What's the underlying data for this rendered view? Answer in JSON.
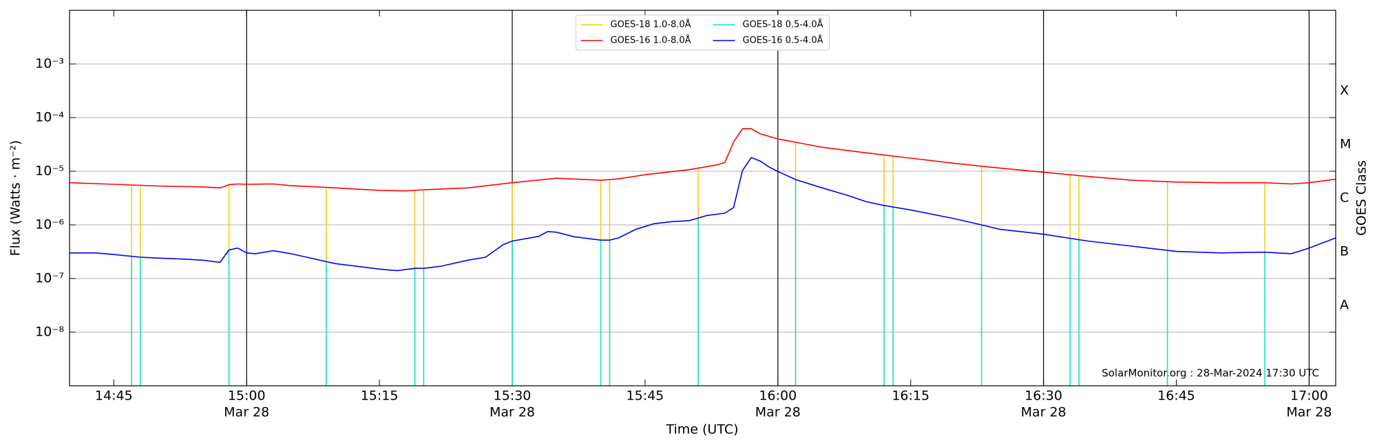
{
  "chart_data": {
    "type": "line",
    "xlabel": "Time (UTC)",
    "ylabel": "Flux (Watts · m⁻²)",
    "y2label": "GOES Class",
    "annotation": "SolarMonitor.org : 28-Mar-2024 17:30 UTC",
    "log_y": true,
    "grid": true,
    "legend": "upper center",
    "xlim": [
      "14:40",
      "17:03"
    ],
    "xticks": [
      {
        "value": "14:45",
        "label": "14:45"
      },
      {
        "value": "15:00",
        "label": [
          "15:00",
          "Mar 28"
        ]
      },
      {
        "value": "15:15",
        "label": "15:15"
      },
      {
        "value": "15:30",
        "label": [
          "15:30",
          "Mar 28"
        ]
      },
      {
        "value": "15:45",
        "label": "15:45"
      },
      {
        "value": "16:00",
        "label": [
          "16:00",
          "Mar 28"
        ]
      },
      {
        "value": "16:15",
        "label": "16:15"
      },
      {
        "value": "16:30",
        "label": [
          "16:30",
          "Mar 28"
        ]
      },
      {
        "value": "16:45",
        "label": "16:45"
      },
      {
        "value": "17:00",
        "label": [
          "17:00",
          "Mar 28"
        ]
      }
    ],
    "ylim": [
      1e-09,
      0.01
    ],
    "yticks": [
      {
        "value": 1e-08,
        "label": "10⁻⁸"
      },
      {
        "value": 1e-07,
        "label": "10⁻⁷"
      },
      {
        "value": 1e-06,
        "label": "10⁻⁶"
      },
      {
        "value": 1e-05,
        "label": "10⁻⁵"
      },
      {
        "value": 0.0001,
        "label": "10⁻⁴"
      },
      {
        "value": 0.001,
        "label": "10⁻³"
      }
    ],
    "y2lim": [
      1e-09,
      0.01
    ],
    "y2ticks": [
      {
        "value": 3.162e-08,
        "label": "A"
      },
      {
        "value": 3.162e-07,
        "label": "B"
      },
      {
        "value": 3.162e-06,
        "label": "C"
      },
      {
        "value": 3.162e-05,
        "label": "M"
      },
      {
        "value": 0.0003162,
        "label": "X"
      }
    ],
    "series": [
      {
        "name": "GOES-18 1.0-8.0Å",
        "color": "#ffc800",
        "style": "spike",
        "x": [
          "14:47",
          "14:48",
          "14:58",
          "15:09",
          "15:19",
          "15:20",
          "15:30",
          "15:40",
          "15:41",
          "15:51",
          "16:02",
          "16:12",
          "16:13",
          "16:23",
          "16:33",
          "16:34",
          "16:44",
          "16:55"
        ],
        "values": [
          5.3e-06,
          5.2e-06,
          5.6e-06,
          4.9e-06,
          4.4e-06,
          4.4e-06,
          6.1e-06,
          6.8e-06,
          6.9e-06,
          1.1e-05,
          3.4e-05,
          1.9e-05,
          1.85e-05,
          1.2e-05,
          8.6e-06,
          8.3e-06,
          6.3e-06,
          6.1e-06
        ]
      },
      {
        "name": "GOES-16 1.0-8.0Å",
        "color": "#ff0000",
        "style": "line",
        "x": [
          "14:40",
          "14:45",
          "14:50",
          "14:55",
          "14:57",
          "14:58",
          "14:59",
          "15:00",
          "15:03",
          "15:05",
          "15:10",
          "15:15",
          "15:18",
          "15:20",
          "15:25",
          "15:30",
          "15:32",
          "15:35",
          "15:40",
          "15:42",
          "15:45",
          "15:50",
          "15:53",
          "15:54",
          "15:55",
          "15:56",
          "15:57",
          "15:58",
          "16:00",
          "16:05",
          "16:10",
          "16:15",
          "16:20",
          "16:25",
          "16:30",
          "16:35",
          "16:40",
          "16:45",
          "16:50",
          "16:55",
          "16:58",
          "17:00",
          "17:03"
        ],
        "values": [
          6.1e-06,
          5.7e-06,
          5.3e-06,
          5.1e-06,
          4.9e-06,
          5.6e-06,
          5.8e-06,
          5.7e-06,
          5.8e-06,
          5.4e-06,
          4.9e-06,
          4.4e-06,
          4.3e-06,
          4.5e-06,
          4.9e-06,
          6.1e-06,
          6.6e-06,
          7.4e-06,
          6.8e-06,
          7.2e-06,
          8.6e-06,
          1.07e-05,
          1.3e-05,
          1.45e-05,
          3.5e-05,
          6.2e-05,
          6.2e-05,
          5e-05,
          4e-05,
          2.8e-05,
          2.2e-05,
          1.75e-05,
          1.4e-05,
          1.15e-05,
          9.6e-06,
          8e-06,
          6.8e-06,
          6.3e-06,
          6.1e-06,
          6.1e-06,
          5.8e-06,
          6.1e-06,
          7.1e-06
        ]
      },
      {
        "name": "GOES-18 0.5-4.0Å",
        "color": "#00e6e6",
        "style": "spike",
        "x": [
          "14:47",
          "14:48",
          "14:58",
          "15:09",
          "15:19",
          "15:20",
          "15:30",
          "15:40",
          "15:41",
          "15:51",
          "16:02",
          "16:12",
          "16:13",
          "16:23",
          "16:33",
          "16:34",
          "16:44",
          "16:55"
        ],
        "values": [
          2.5e-07,
          2.4e-07,
          3.4e-07,
          2e-07,
          1.55e-07,
          1.55e-07,
          5e-07,
          5.2e-07,
          5.2e-07,
          1.4e-06,
          7e-06,
          2.3e-06,
          2.2e-06,
          1e-06,
          5.4e-07,
          5.2e-07,
          3.2e-07,
          3.1e-07
        ]
      },
      {
        "name": "GOES-16 0.5-4.0Å",
        "color": "#0000ee",
        "style": "line",
        "x": [
          "14:40",
          "14:43",
          "14:45",
          "14:48",
          "14:50",
          "14:53",
          "14:55",
          "14:57",
          "14:58",
          "14:59",
          "15:00",
          "15:01",
          "15:03",
          "15:05",
          "15:10",
          "15:15",
          "15:17",
          "15:19",
          "15:20",
          "15:22",
          "15:25",
          "15:27",
          "15:29",
          "15:30",
          "15:33",
          "15:34",
          "15:35",
          "15:37",
          "15:40",
          "15:41",
          "15:42",
          "15:44",
          "15:46",
          "15:48",
          "15:50",
          "15:52",
          "15:54",
          "15:55",
          "15:56",
          "15:57",
          "15:58",
          "15:59",
          "16:00",
          "16:02",
          "16:05",
          "16:08",
          "16:10",
          "16:12",
          "16:15",
          "16:20",
          "16:23",
          "16:25",
          "16:30",
          "16:35",
          "16:40",
          "16:45",
          "16:50",
          "16:55",
          "16:58",
          "17:00",
          "17:03"
        ],
        "values": [
          3e-07,
          3e-07,
          2.8e-07,
          2.5e-07,
          2.4e-07,
          2.3e-07,
          2.2e-07,
          2e-07,
          3.4e-07,
          3.7e-07,
          3e-07,
          2.9e-07,
          3.3e-07,
          2.9e-07,
          1.9e-07,
          1.5e-07,
          1.4e-07,
          1.55e-07,
          1.55e-07,
          1.7e-07,
          2.2e-07,
          2.5e-07,
          4.3e-07,
          5e-07,
          6.1e-07,
          7.5e-07,
          7.3e-07,
          6e-07,
          5.2e-07,
          5.2e-07,
          5.7e-07,
          8.3e-07,
          1.05e-06,
          1.15e-06,
          1.2e-06,
          1.5e-06,
          1.65e-06,
          2.1e-06,
          1.03e-05,
          1.8e-05,
          1.55e-05,
          1.2e-05,
          9.9e-06,
          7e-06,
          4.9e-06,
          3.5e-06,
          2.7e-06,
          2.3e-06,
          1.9e-06,
          1.3e-06,
          1e-06,
          8.3e-07,
          6.7e-07,
          5e-07,
          4e-07,
          3.2e-07,
          3e-07,
          3.1e-07,
          2.9e-07,
          3.7e-07,
          5.7e-07
        ]
      }
    ]
  }
}
